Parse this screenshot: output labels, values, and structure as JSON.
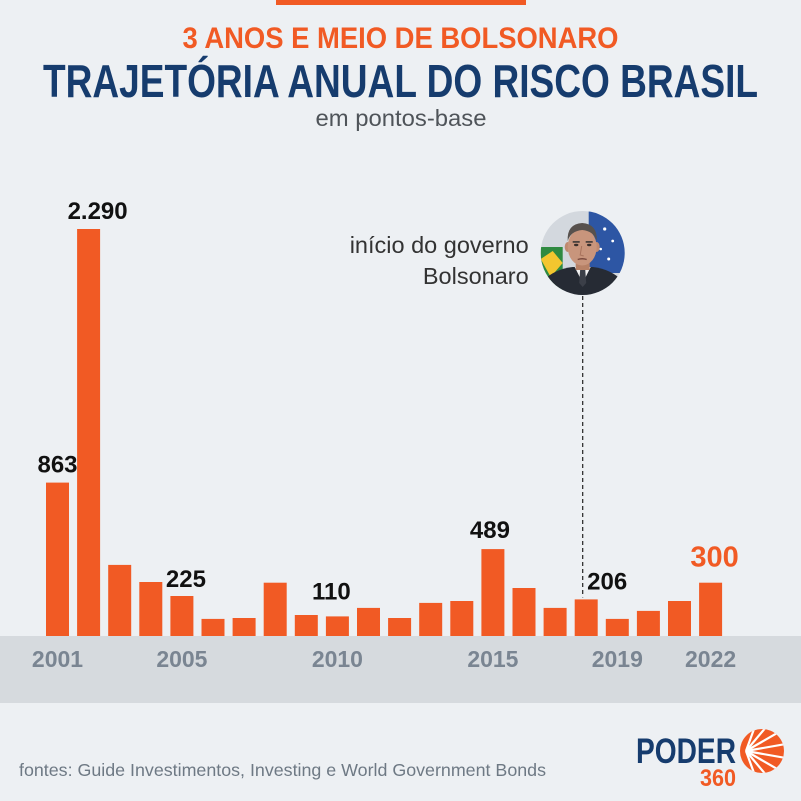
{
  "chart_data": {
    "type": "bar",
    "kicker": "3 ANOS E MEIO DE BOLSONARO",
    "title": "TRAJETÓRIA ANUAL DO RISCO BRASIL",
    "subtitle": "em pontos-base",
    "x": [
      2001,
      2002,
      2003,
      2004,
      2005,
      2006,
      2007,
      2008,
      2009,
      2010,
      2011,
      2012,
      2013,
      2014,
      2015,
      2016,
      2017,
      2018,
      2019,
      2020,
      2021,
      2022
    ],
    "values": [
      863,
      2290,
      400,
      304,
      225,
      96,
      101,
      300,
      118,
      110,
      158,
      101,
      186,
      197,
      489,
      270,
      158,
      206,
      96,
      141,
      197,
      300
    ],
    "xticks": [
      2001,
      2005,
      2010,
      2015,
      2019,
      2022
    ],
    "data_labels": [
      {
        "x": 2001,
        "text": "863"
      },
      {
        "x": 2002,
        "text": "2.290"
      },
      {
        "x": 2005,
        "text": "225"
      },
      {
        "x": 2010,
        "text": "110"
      },
      {
        "x": 2015,
        "text": "489"
      },
      {
        "x": 2018,
        "text": "206"
      },
      {
        "x": 2022,
        "text": "300",
        "highlight": true
      }
    ],
    "annotation": {
      "x": 2018,
      "lines": [
        "início do governo",
        "Bolsonaro"
      ],
      "icon": "portrait-photo"
    },
    "grid": false,
    "colors": {
      "bar": "#f15a24",
      "highlight": "#f15a24",
      "kicker": "#f15a24",
      "title": "#163c6e",
      "axis_band": "#d6dade",
      "background": "#edf0f3"
    }
  },
  "footer": {
    "source": "fontes: Guide Investimentos, Investing e World Government Bonds"
  },
  "branding": {
    "logo_word": "PODER",
    "logo_number": "360",
    "icon": "sun-icon"
  }
}
